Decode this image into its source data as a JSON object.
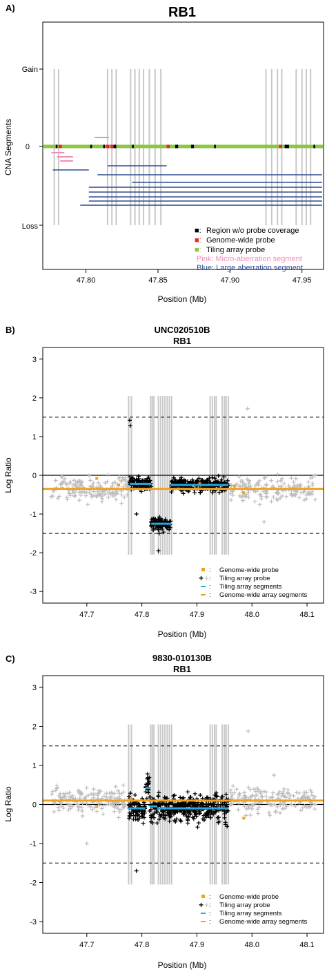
{
  "colors": {
    "black": "#000000",
    "red": "#e8262b",
    "green": "#8dc640",
    "pink": "#f08cb7",
    "blue": "#2f4a8f",
    "grey": "#c8c8c8",
    "light_grey": "#bdbdbd",
    "cyan": "#2aa7df",
    "orange": "#f2a11f"
  },
  "panels": {
    "a": {
      "letter": "A)",
      "title": "RB1"
    },
    "b": {
      "letter": "B)",
      "title": "UNC020510B",
      "subtitle": "RB1"
    },
    "c": {
      "letter": "C)",
      "title": "9830-010130B",
      "subtitle": "RB1"
    }
  },
  "legend_a": {
    "sym1": "■:",
    "sym2": "■:",
    "sym3": "■:",
    "item1": "Region w/o probe coverage",
    "item2": "Genome-wide probe",
    "item3": "Tiling array probe",
    "item4": "Pink:  Micro-aberration segment",
    "item5": "Blue:  Large aberration segment"
  },
  "legend_bc": {
    "item1": "Genome-wide probe",
    "item2": "Tiling array probe",
    "item3": "Tiling array segments",
    "item4": "Genome-wide array segments",
    "colon": ":"
  },
  "chart_data": [
    {
      "type": "segments",
      "title": "RB1",
      "xlabel": "Position (Mb)",
      "ylabel": "CNA Segments",
      "xlim": [
        47.77,
        47.965
      ],
      "xticks": [
        "47.80",
        "47.85",
        "47.90",
        "47.95"
      ],
      "xtick_values": [
        47.8,
        47.85,
        47.9,
        47.95
      ],
      "yticks": [
        "Gain",
        "0",
        "Loss"
      ],
      "grid": false,
      "legend_position": "bottom-right",
      "probe_lines": [
        47.778,
        47.781,
        47.815,
        47.818,
        47.821,
        47.831,
        47.834,
        47.837,
        47.84,
        47.844,
        47.848,
        47.852,
        47.925,
        47.929,
        47.933,
        47.936,
        47.946,
        47.95,
        47.953,
        47.956
      ],
      "genome_wide_probes": [
        47.782,
        47.815,
        47.818,
        47.857,
        47.935
      ],
      "no_coverage_regions": [
        [
          47.779,
          47.78
        ],
        [
          47.803,
          47.804
        ],
        [
          47.812,
          47.813
        ],
        [
          47.819,
          47.821
        ],
        [
          47.832,
          47.833
        ],
        [
          47.862,
          47.864
        ],
        [
          47.873,
          47.875
        ],
        [
          47.889,
          47.89
        ],
        [
          47.938,
          47.941
        ],
        [
          47.958,
          47.959
        ]
      ],
      "micro_aberrations": [
        {
          "start": 47.806,
          "end": 47.816,
          "level": "gain"
        },
        {
          "start": 47.776,
          "end": 47.785,
          "level": "loss-1"
        },
        {
          "start": 47.78,
          "end": 47.791,
          "level": "loss-2"
        },
        {
          "start": 47.782,
          "end": 47.791,
          "level": "loss-3"
        }
      ],
      "large_aberrations": [
        {
          "start": 47.777,
          "end": 47.802,
          "row": 1
        },
        {
          "start": 47.815,
          "end": 47.856,
          "row": 1
        },
        {
          "start": 47.808,
          "end": 47.964,
          "row": 2
        },
        {
          "start": 47.832,
          "end": 47.964,
          "row": 3
        },
        {
          "start": 47.802,
          "end": 47.964,
          "row": 4
        },
        {
          "start": 47.802,
          "end": 47.964,
          "row": 5
        },
        {
          "start": 47.802,
          "end": 47.964,
          "row": 6
        },
        {
          "start": 47.802,
          "end": 47.964,
          "row": 7
        },
        {
          "start": 47.796,
          "end": 47.964,
          "row": 8
        }
      ]
    },
    {
      "type": "scatter",
      "title": "UNC020510B",
      "subtitle": "RB1",
      "xlabel": "Position (Mb)",
      "ylabel": "Log Ratio",
      "xlim": [
        47.62,
        48.13
      ],
      "ylim": [
        -3.3,
        3.3
      ],
      "xticks": [
        "47.7",
        "47.8",
        "47.9",
        "48.0",
        "48.1"
      ],
      "xtick_values": [
        47.7,
        47.8,
        47.9,
        48.0,
        48.1
      ],
      "yticks": [
        "-3",
        "-2",
        "-1",
        "0",
        "1",
        "2",
        "3"
      ],
      "ytick_values": [
        -3,
        -2,
        -1,
        0,
        1,
        2,
        3
      ],
      "thresholds": [
        1.5,
        -1.5
      ],
      "zero_line": 0,
      "probe_lines": [
        47.776,
        47.781,
        47.816,
        47.819,
        47.822,
        47.83,
        47.834,
        47.838,
        47.842,
        47.846,
        47.85,
        47.854,
        47.924,
        47.928,
        47.932,
        47.935,
        47.946,
        47.95,
        47.953,
        47.957
      ],
      "tiling_segments": [
        {
          "start": 47.778,
          "end": 47.817,
          "value": -0.22
        },
        {
          "start": 47.817,
          "end": 47.853,
          "value": -1.25
        },
        {
          "start": 47.853,
          "end": 47.957,
          "value": -0.25
        }
      ],
      "genome_wide_segment": {
        "start": 47.62,
        "end": 48.13,
        "value": -0.35
      },
      "genome_wide_probes": [
        [
          47.718,
          -0.08
        ],
        [
          47.758,
          -0.25
        ],
        [
          47.905,
          -0.22
        ],
        [
          47.968,
          -0.28
        ],
        [
          47.985,
          -0.45
        ]
      ],
      "outliers": [
        [
          47.778,
          1.42
        ],
        [
          47.779,
          1.28
        ],
        [
          47.992,
          1.72
        ],
        [
          47.83,
          -1.95
        ],
        [
          47.79,
          -1.0
        ],
        [
          48.022,
          -1.2
        ]
      ],
      "legend_position": "bottom-right"
    },
    {
      "type": "scatter",
      "title": "9830-010130B",
      "subtitle": "RB1",
      "xlabel": "Position (Mb)",
      "ylabel": "Log Ratio",
      "xlim": [
        47.62,
        48.13
      ],
      "ylim": [
        -3.3,
        3.3
      ],
      "xticks": [
        "47.7",
        "47.8",
        "47.9",
        "48.0",
        "48.1"
      ],
      "xtick_values": [
        47.7,
        47.8,
        47.9,
        48.0,
        48.1
      ],
      "yticks": [
        "-3",
        "-2",
        "-1",
        "0",
        "1",
        "2",
        "3"
      ],
      "ytick_values": [
        -3,
        -2,
        -1,
        0,
        1,
        2,
        3
      ],
      "thresholds": [
        1.5,
        -1.5
      ],
      "zero_line": 0,
      "probe_lines": [
        47.776,
        47.781,
        47.816,
        47.819,
        47.822,
        47.83,
        47.834,
        47.838,
        47.842,
        47.846,
        47.85,
        47.854,
        47.924,
        47.928,
        47.932,
        47.935,
        47.946,
        47.95,
        47.953,
        47.957
      ],
      "tiling_segments": [
        {
          "start": 47.776,
          "end": 47.806,
          "value": -0.1
        },
        {
          "start": 47.806,
          "end": 47.814,
          "value": 0.42
        },
        {
          "start": 47.814,
          "end": 47.828,
          "value": -0.05
        },
        {
          "start": 47.828,
          "end": 47.957,
          "value": -0.1
        }
      ],
      "genome_wide_segment": {
        "start": 47.62,
        "end": 48.13,
        "value": 0.1
      },
      "genome_wide_probes": [
        [
          47.718,
          -0.05
        ],
        [
          47.78,
          0.15
        ],
        [
          47.985,
          -0.35
        ]
      ],
      "outliers": [
        [
          47.79,
          -1.7
        ],
        [
          47.993,
          1.88
        ],
        [
          48.04,
          0.75
        ],
        [
          47.7,
          -1.0
        ]
      ],
      "legend_position": "bottom-right"
    }
  ]
}
